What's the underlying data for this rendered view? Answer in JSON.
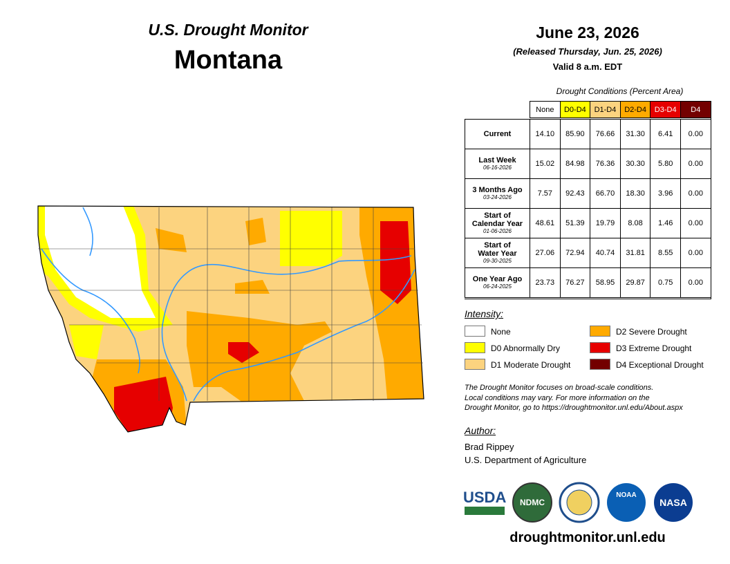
{
  "header": {
    "subtitle": "U.S. Drought Monitor",
    "title": "Montana"
  },
  "dateline": {
    "date": "June 23, 2026",
    "released": "(Released Thursday, Jun. 25, 2026)",
    "valid": "Valid 8 a.m. EDT"
  },
  "table": {
    "caption": "Drought Conditions (Percent Area)",
    "columns": [
      "None",
      "D0-D4",
      "D1-D4",
      "D2-D4",
      "D3-D4",
      "D4"
    ],
    "rows": [
      {
        "label": [
          "Current"
        ],
        "values": [
          "14.10",
          "85.90",
          "76.66",
          "31.30",
          "6.41",
          "0.00"
        ]
      },
      {
        "label": [
          "Last Week"
        ],
        "date": "06-16-2026",
        "values": [
          "15.02",
          "84.98",
          "76.36",
          "30.30",
          "5.80",
          "0.00"
        ]
      },
      {
        "label": [
          "3 Months Ago"
        ],
        "date": "03-24-2026",
        "values": [
          "7.57",
          "92.43",
          "66.70",
          "18.30",
          "3.96",
          "0.00"
        ]
      },
      {
        "label": [
          "Start of",
          "Calendar Year"
        ],
        "date": "01-06-2026",
        "values": [
          "48.61",
          "51.39",
          "19.79",
          "8.08",
          "1.46",
          "0.00"
        ]
      },
      {
        "label": [
          "Start of",
          "Water Year"
        ],
        "date": "09-30-2025",
        "values": [
          "27.06",
          "72.94",
          "40.74",
          "31.81",
          "8.55",
          "0.00"
        ]
      },
      {
        "label": [
          "One Year Ago"
        ],
        "date": "06-24-2025",
        "values": [
          "23.73",
          "76.27",
          "58.95",
          "29.87",
          "0.75",
          "0.00"
        ]
      }
    ]
  },
  "legend": {
    "title": "Intensity:",
    "items": [
      "None",
      "D0 Abnormally Dry",
      "D1 Moderate Drought",
      "D2 Severe Drought",
      "D3 Extreme Drought",
      "D4 Exceptional Drought"
    ]
  },
  "note": [
    "The Drought Monitor focuses on broad-scale conditions.",
    "Local conditions may vary. For more information on the",
    "Drought Monitor, go to https://droughtmonitor.unl.edu/About.aspx"
  ],
  "author": {
    "heading": "Author:",
    "lines": [
      "Brad Rippey",
      "U.S. Department of Agriculture"
    ]
  },
  "logos": [
    "USDA",
    "NDMC",
    "NOAA",
    "NASA"
  ],
  "footer": {
    "url": "droughtmonitor.unl.edu"
  }
}
